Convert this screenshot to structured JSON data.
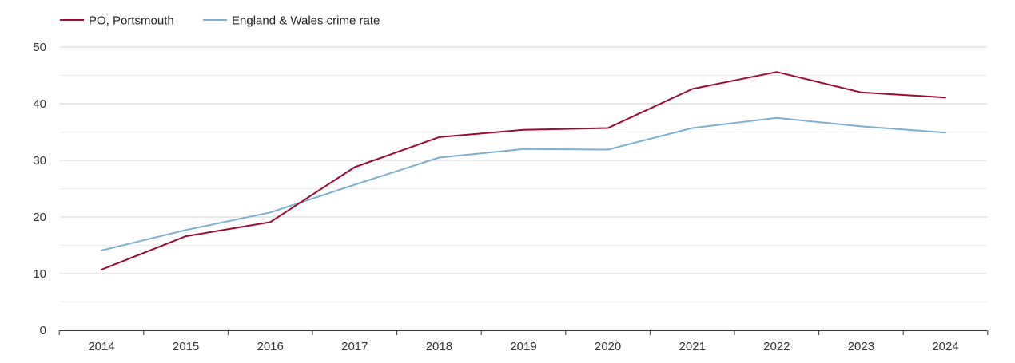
{
  "chart_data": {
    "type": "line",
    "title": "",
    "xlabel": "",
    "ylabel": "",
    "categories": [
      "2014",
      "2015",
      "2016",
      "2017",
      "2018",
      "2019",
      "2020",
      "2021",
      "2022",
      "2023",
      "2024"
    ],
    "ylim": [
      0,
      50
    ],
    "yticks": [
      0,
      10,
      20,
      30,
      40,
      50
    ],
    "grid": true,
    "legend_position": "top-left",
    "series": [
      {
        "name": "PO, Portsmouth",
        "color": "#9b0a32",
        "values": [
          10.7,
          16.6,
          19.1,
          28.8,
          34.1,
          35.4,
          35.7,
          42.6,
          45.6,
          42.0,
          41.1
        ]
      },
      {
        "name": "England & Wales crime rate",
        "color": "#7bb0d1",
        "values": [
          14.1,
          17.7,
          20.8,
          25.7,
          30.5,
          32.0,
          31.9,
          35.7,
          37.5,
          36.0,
          34.9
        ]
      }
    ]
  }
}
